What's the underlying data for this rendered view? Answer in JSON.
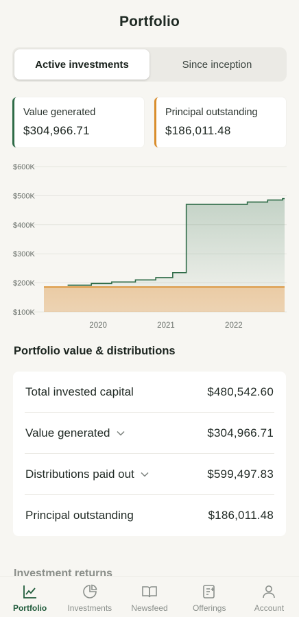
{
  "header": {
    "title": "Portfolio"
  },
  "segmented": {
    "active_label": "Active investments",
    "other_label": "Since inception"
  },
  "stats": {
    "value_generated": {
      "label": "Value generated",
      "value": "$304,966.71",
      "color": "#2e6b47"
    },
    "principal_outstanding": {
      "label": "Principal outstanding",
      "value": "$186,011.48",
      "color": "#d98d2c"
    }
  },
  "chart_data": {
    "type": "area",
    "y_ticks": [
      "$600K",
      "$500K",
      "$400K",
      "$300K",
      "$200K",
      "$100K"
    ],
    "ylim": [
      100000,
      600000
    ],
    "x_ticks": [
      "2020",
      "2021",
      "2022"
    ],
    "xlim": [
      2019.2,
      2022.75
    ],
    "grid": true,
    "legend": "none",
    "series": [
      {
        "color": "#2e6b47",
        "step": true,
        "x": [
          2019.55,
          2019.9,
          2020.2,
          2020.55,
          2020.85,
          2021.1,
          2021.3,
          2021.95,
          2022.2,
          2022.5,
          2022.72
        ],
        "y": [
          192000,
          198000,
          203000,
          210000,
          218000,
          235000,
          470000,
          470000,
          478000,
          485000,
          490000
        ]
      },
      {
        "color": "#d98d2c",
        "x": [
          2019.2,
          2022.75
        ],
        "y": [
          186011,
          186011
        ]
      }
    ]
  },
  "section": {
    "title": "Portfolio value & distributions"
  },
  "rows": [
    {
      "label": "Total invested capital",
      "value": "$480,542.60",
      "expandable": false
    },
    {
      "label": "Value generated",
      "value": "$304,966.71",
      "expandable": true
    },
    {
      "label": "Distributions paid out",
      "value": "$599,497.83",
      "expandable": true
    },
    {
      "label": "Principal outstanding",
      "value": "$186,011.48",
      "expandable": false
    }
  ],
  "next_section": {
    "title": "Investment returns"
  },
  "tabs": [
    {
      "label": "Portfolio",
      "icon": "chart-line-icon",
      "active": true
    },
    {
      "label": "Investments",
      "icon": "pie-chart-icon",
      "active": false
    },
    {
      "label": "Newsfeed",
      "icon": "book-open-icon",
      "active": false
    },
    {
      "label": "Offerings",
      "icon": "offerings-icon",
      "active": false
    },
    {
      "label": "Account",
      "icon": "user-icon",
      "active": false
    }
  ]
}
